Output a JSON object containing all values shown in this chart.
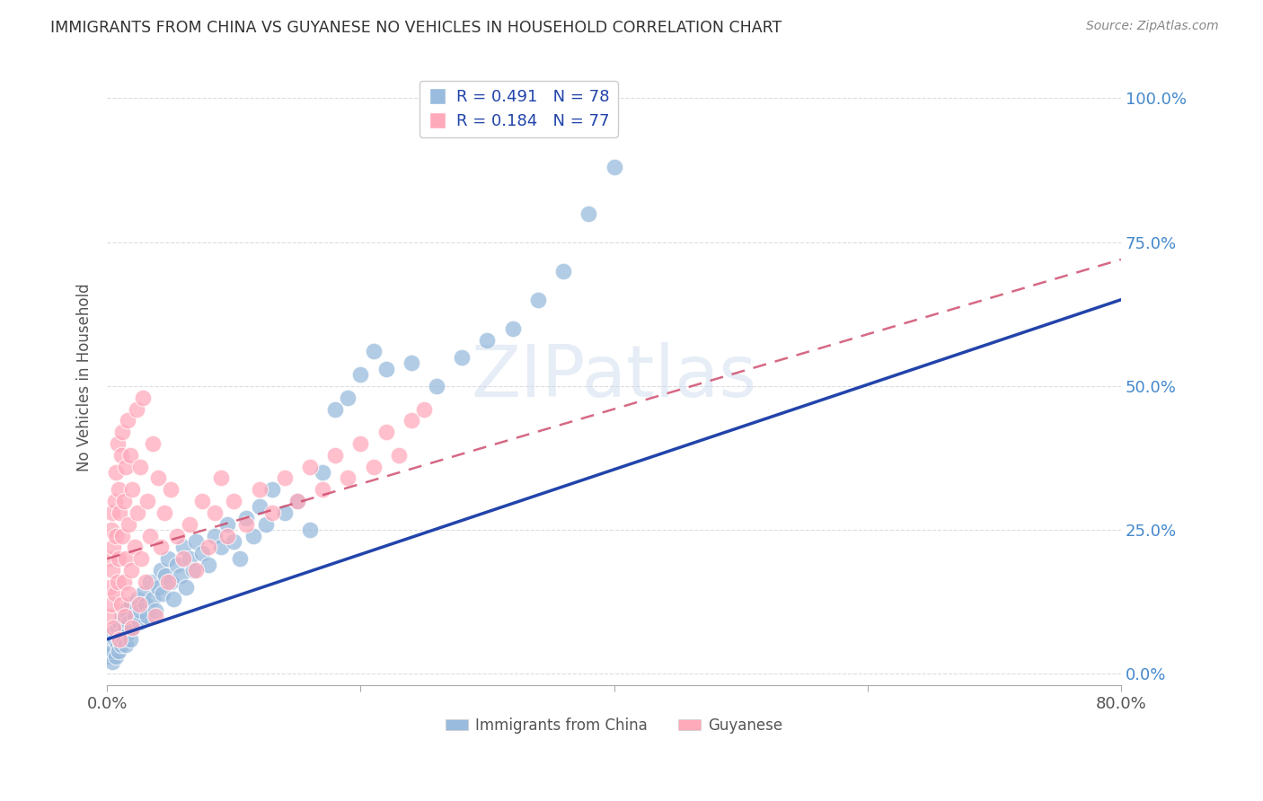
{
  "title": "IMMIGRANTS FROM CHINA VS GUYANESE NO VEHICLES IN HOUSEHOLD CORRELATION CHART",
  "source": "Source: ZipAtlas.com",
  "ylabel": "No Vehicles in Household",
  "ytick_labels": [
    "0.0%",
    "25.0%",
    "50.0%",
    "75.0%",
    "100.0%"
  ],
  "ytick_values": [
    0.0,
    0.25,
    0.5,
    0.75,
    1.0
  ],
  "xlim": [
    0.0,
    0.8
  ],
  "ylim": [
    -0.02,
    1.05
  ],
  "legend_r1": "R = 0.491",
  "legend_n1": "N = 78",
  "legend_r2": "R = 0.184",
  "legend_n2": "N = 77",
  "color_blue": "#99BBDD",
  "color_pink": "#FFAABB",
  "trendline_blue": "#2244AA",
  "trendline_pink": "#CC4466",
  "watermark": "ZIPatlas",
  "background": "#FFFFFF",
  "china_x": [
    0.002,
    0.003,
    0.004,
    0.005,
    0.005,
    0.006,
    0.007,
    0.008,
    0.008,
    0.009,
    0.01,
    0.01,
    0.011,
    0.012,
    0.012,
    0.013,
    0.014,
    0.015,
    0.015,
    0.016,
    0.017,
    0.018,
    0.019,
    0.02,
    0.022,
    0.024,
    0.025,
    0.026,
    0.028,
    0.03,
    0.032,
    0.034,
    0.036,
    0.038,
    0.04,
    0.042,
    0.044,
    0.046,
    0.048,
    0.05,
    0.052,
    0.055,
    0.058,
    0.06,
    0.062,
    0.065,
    0.068,
    0.07,
    0.075,
    0.08,
    0.085,
    0.09,
    0.095,
    0.1,
    0.105,
    0.11,
    0.115,
    0.12,
    0.125,
    0.13,
    0.14,
    0.15,
    0.16,
    0.17,
    0.18,
    0.19,
    0.2,
    0.21,
    0.22,
    0.24,
    0.26,
    0.28,
    0.3,
    0.32,
    0.34,
    0.36,
    0.38,
    0.4
  ],
  "china_y": [
    0.03,
    0.05,
    0.02,
    0.04,
    0.07,
    0.06,
    0.03,
    0.05,
    0.08,
    0.04,
    0.06,
    0.09,
    0.05,
    0.07,
    0.1,
    0.06,
    0.08,
    0.05,
    0.11,
    0.07,
    0.09,
    0.06,
    0.12,
    0.08,
    0.1,
    0.13,
    0.09,
    0.11,
    0.14,
    0.12,
    0.1,
    0.16,
    0.13,
    0.11,
    0.15,
    0.18,
    0.14,
    0.17,
    0.2,
    0.16,
    0.13,
    0.19,
    0.17,
    0.22,
    0.15,
    0.2,
    0.18,
    0.23,
    0.21,
    0.19,
    0.24,
    0.22,
    0.26,
    0.23,
    0.2,
    0.27,
    0.24,
    0.29,
    0.26,
    0.32,
    0.28,
    0.3,
    0.25,
    0.35,
    0.46,
    0.48,
    0.52,
    0.56,
    0.53,
    0.54,
    0.5,
    0.55,
    0.58,
    0.6,
    0.65,
    0.7,
    0.8,
    0.88
  ],
  "guyanese_x": [
    0.001,
    0.002,
    0.002,
    0.003,
    0.003,
    0.004,
    0.004,
    0.005,
    0.005,
    0.006,
    0.006,
    0.007,
    0.007,
    0.008,
    0.008,
    0.009,
    0.009,
    0.01,
    0.01,
    0.011,
    0.011,
    0.012,
    0.012,
    0.013,
    0.013,
    0.014,
    0.015,
    0.015,
    0.016,
    0.017,
    0.017,
    0.018,
    0.019,
    0.02,
    0.02,
    0.022,
    0.023,
    0.024,
    0.025,
    0.026,
    0.027,
    0.028,
    0.03,
    0.032,
    0.034,
    0.036,
    0.038,
    0.04,
    0.042,
    0.045,
    0.048,
    0.05,
    0.055,
    0.06,
    0.065,
    0.07,
    0.075,
    0.08,
    0.085,
    0.09,
    0.095,
    0.1,
    0.11,
    0.12,
    0.13,
    0.14,
    0.15,
    0.16,
    0.17,
    0.18,
    0.19,
    0.2,
    0.21,
    0.22,
    0.23,
    0.24,
    0.25
  ],
  "guyanese_y": [
    0.1,
    0.15,
    0.2,
    0.12,
    0.25,
    0.18,
    0.28,
    0.08,
    0.22,
    0.3,
    0.14,
    0.35,
    0.24,
    0.16,
    0.4,
    0.2,
    0.32,
    0.06,
    0.28,
    0.38,
    0.12,
    0.24,
    0.42,
    0.16,
    0.3,
    0.1,
    0.36,
    0.2,
    0.44,
    0.14,
    0.26,
    0.38,
    0.18,
    0.08,
    0.32,
    0.22,
    0.46,
    0.28,
    0.12,
    0.36,
    0.2,
    0.48,
    0.16,
    0.3,
    0.24,
    0.4,
    0.1,
    0.34,
    0.22,
    0.28,
    0.16,
    0.32,
    0.24,
    0.2,
    0.26,
    0.18,
    0.3,
    0.22,
    0.28,
    0.34,
    0.24,
    0.3,
    0.26,
    0.32,
    0.28,
    0.34,
    0.3,
    0.36,
    0.32,
    0.38,
    0.34,
    0.4,
    0.36,
    0.42,
    0.38,
    0.44,
    0.46
  ],
  "trendline_china_x0": 0.0,
  "trendline_china_x1": 0.8,
  "trendline_china_y0": 0.06,
  "trendline_china_y1": 0.65,
  "trendline_guyanese_x0": 0.0,
  "trendline_guyanese_x1": 0.8,
  "trendline_guyanese_y0": 0.2,
  "trendline_guyanese_y1": 0.72
}
